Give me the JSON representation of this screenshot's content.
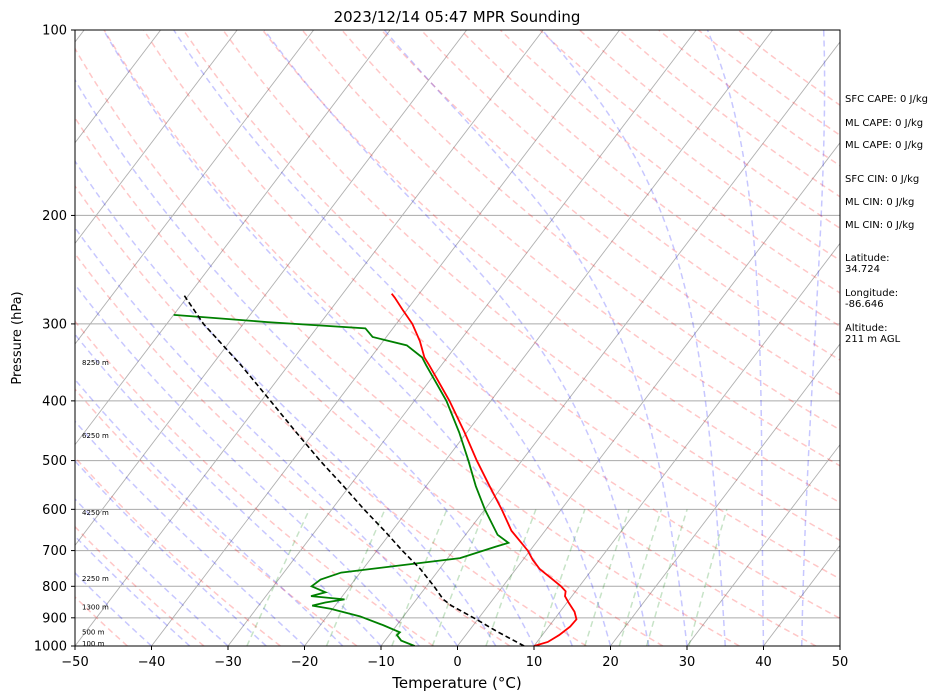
{
  "chart_data": {
    "type": "line",
    "title": "2023/12/14 05:47 MPR Sounding",
    "xlabel": "Temperature (°C)",
    "ylabel": "Pressure (hPa)",
    "xlim": [
      -50,
      50
    ],
    "ylim": [
      1000,
      100
    ],
    "y_scale": "log",
    "skew": "skew-T log-P",
    "grid": true,
    "x_ticks": [
      -50,
      -40,
      -30,
      -20,
      -10,
      0,
      10,
      20,
      30,
      40,
      50
    ],
    "y_ticks": [
      1000,
      900,
      800,
      700,
      600,
      500,
      400,
      300,
      200,
      100
    ],
    "colors": {
      "temperature": "#ff0000",
      "dewpoint": "#008000",
      "parcel": "#000000",
      "dry_adiabats": "#ff0000",
      "moist_adiabats": "#0000ff",
      "mixing_ratio": "#008000",
      "isotherms": "#808080"
    },
    "series": [
      {
        "type": "temperature",
        "points": [
          [
            1000,
            10.0
          ],
          [
            985,
            11.4
          ],
          [
            960,
            12.2
          ],
          [
            930,
            12.8
          ],
          [
            905,
            12.9
          ],
          [
            880,
            11.9
          ],
          [
            850,
            10.2
          ],
          [
            830,
            9.1
          ],
          [
            815,
            8.7
          ],
          [
            800,
            7.6
          ],
          [
            775,
            5.4
          ],
          [
            750,
            3.1
          ],
          [
            725,
            1.3
          ],
          [
            700,
            -0.3
          ],
          [
            680,
            -1.9
          ],
          [
            650,
            -4.4
          ],
          [
            600,
            -7.8
          ],
          [
            550,
            -11.7
          ],
          [
            500,
            -15.9
          ],
          [
            450,
            -20.3
          ],
          [
            400,
            -25.4
          ],
          [
            350,
            -31.6
          ],
          [
            340,
            -33.0
          ],
          [
            320,
            -35.2
          ],
          [
            300,
            -37.9
          ],
          [
            285,
            -40.5
          ],
          [
            272,
            -42.8
          ],
          [
            268,
            -43.6
          ]
        ]
      },
      {
        "type": "dewpoint",
        "points": [
          [
            1000,
            -5.6
          ],
          [
            980,
            -7.9
          ],
          [
            960,
            -9.0
          ],
          [
            950,
            -8.9
          ],
          [
            925,
            -11.8
          ],
          [
            895,
            -15.7
          ],
          [
            870,
            -20.3
          ],
          [
            860,
            -23.0
          ],
          [
            850,
            -21.6
          ],
          [
            840,
            -19.4
          ],
          [
            830,
            -24.1
          ],
          [
            818,
            -22.6
          ],
          [
            800,
            -25.0
          ],
          [
            780,
            -24.5
          ],
          [
            760,
            -22.5
          ],
          [
            720,
            -8.4
          ],
          [
            690,
            -4.9
          ],
          [
            680,
            -3.6
          ],
          [
            660,
            -5.8
          ],
          [
            600,
            -10.0
          ],
          [
            550,
            -13.5
          ],
          [
            500,
            -17.0
          ],
          [
            450,
            -21.0
          ],
          [
            400,
            -25.8
          ],
          [
            350,
            -32.0
          ],
          [
            340,
            -33.3
          ],
          [
            325,
            -36.5
          ],
          [
            315,
            -41.8
          ],
          [
            305,
            -43.6
          ],
          [
            298,
            -57.0
          ],
          [
            290,
            -70.0
          ]
        ]
      },
      {
        "type": "parcel",
        "points": [
          [
            1000,
            8.7
          ],
          [
            950,
            4.0
          ],
          [
            900,
            -0.7
          ],
          [
            860,
            -4.8
          ],
          [
            840,
            -6.5
          ],
          [
            800,
            -9.0
          ],
          [
            750,
            -12.5
          ],
          [
            700,
            -16.7
          ],
          [
            650,
            -21.0
          ],
          [
            600,
            -25.8
          ],
          [
            550,
            -30.8
          ],
          [
            500,
            -36.4
          ],
          [
            450,
            -42.3
          ],
          [
            400,
            -48.8
          ],
          [
            350,
            -56.2
          ],
          [
            300,
            -65.2
          ],
          [
            270,
            -70.5
          ]
        ]
      }
    ],
    "altitude_labels": [
      {
        "label": "100 m",
        "p": 992
      },
      {
        "label": "500 m",
        "p": 950
      },
      {
        "label": "1300 m",
        "p": 866
      },
      {
        "label": "2250 m",
        "p": 778
      },
      {
        "label": "4250 m",
        "p": 608
      },
      {
        "label": "6250 m",
        "p": 456
      },
      {
        "label": "8250 m",
        "p": 347
      }
    ],
    "side_labels": [
      "SFC CAPE: 0 J/kg",
      "ML CAPE: 0 J/kg",
      "ML CAPE: 0 J/kg",
      "SFC CIN: 0 J/kg",
      "ML CIN: 0 J/kg",
      "ML CIN: 0 J/kg",
      "Latitude:\n34.724",
      "Longitude:\n-86.646",
      "Altitude:\n211 m AGL"
    ]
  }
}
